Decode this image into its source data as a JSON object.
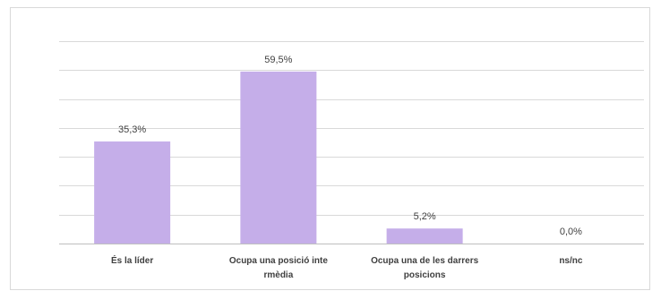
{
  "chart_data": {
    "type": "bar",
    "categories": [
      [
        "És la líder"
      ],
      [
        "Ocupa una posició inte",
        "rmèdia"
      ],
      [
        "Ocupa una de les darrers",
        "posicions"
      ],
      [
        "ns/nc"
      ]
    ],
    "values": [
      35.3,
      59.5,
      5.2,
      0.0
    ],
    "data_labels": [
      "35,3%",
      "59,5%",
      "5,2%",
      "0,0%"
    ],
    "ylim": [
      0,
      70
    ],
    "y_unit": "%",
    "grid": true,
    "legend": "none",
    "bar_color": "#c5aee9"
  }
}
